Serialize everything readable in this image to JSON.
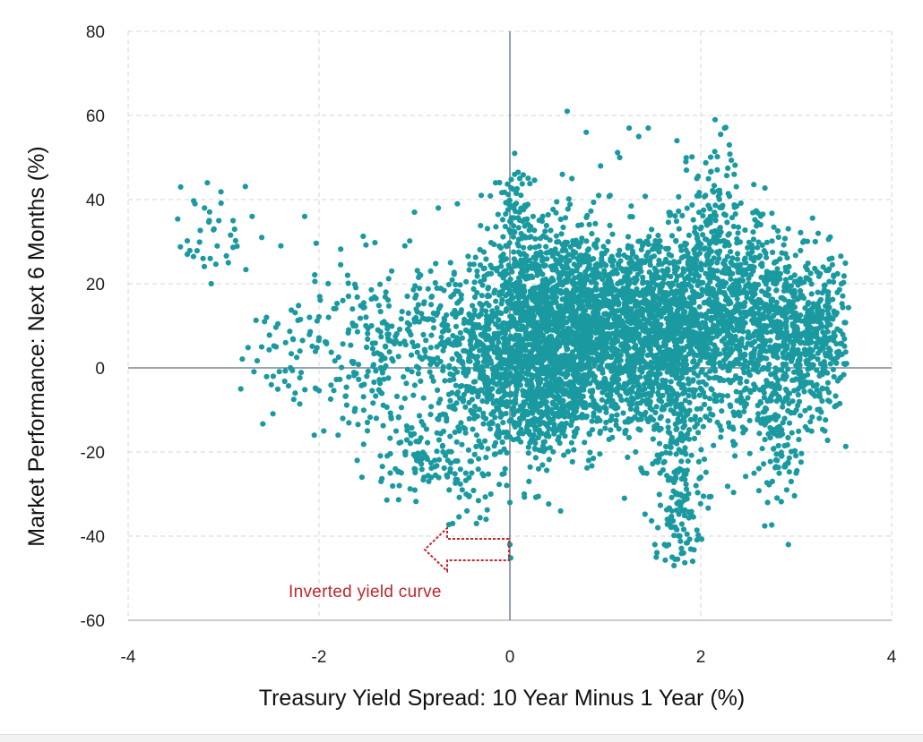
{
  "chart_data": {
    "type": "scatter",
    "xlabel": "Treasury Yield Spread: 10 Year Minus 1 Year (%)",
    "ylabel": "Market Performance: Next 6 Months (%)",
    "xlim": [
      -4,
      4
    ],
    "ylim": [
      -60,
      80
    ],
    "x_ticks": [
      -4,
      -2,
      0,
      2,
      4
    ],
    "y_ticks": [
      -60,
      -40,
      -20,
      0,
      20,
      40,
      60,
      80
    ],
    "x_tick_labels": [
      "-4",
      "-2",
      "0",
      "2",
      "4"
    ],
    "y_tick_labels": [
      "-60",
      "-40",
      "-20",
      "0",
      "20",
      "40",
      "60",
      "80"
    ],
    "grid": "dashed",
    "marker_color": "#1a9aa0",
    "annotation": {
      "text": "Inverted yield curve",
      "color": "#c0262d",
      "arrow": "points left from x = 0 toward negative spread",
      "arrow_y": -44
    },
    "points": [
      [
        -3.45,
        43
      ],
      [
        -3.38,
        27
      ],
      [
        -3.3,
        39
      ],
      [
        -3.2,
        38
      ],
      [
        -3.17,
        44
      ],
      [
        -3.15,
        35
      ],
      [
        -3.14,
        26
      ],
      [
        -3.13,
        20
      ],
      [
        -3.1,
        33
      ],
      [
        -3.05,
        35
      ],
      [
        -2.95,
        25
      ],
      [
        -2.9,
        35
      ],
      [
        -2.82,
        -5
      ],
      [
        -2.7,
        36
      ],
      [
        -2.6,
        31
      ],
      [
        -2.55,
        12
      ],
      [
        -2.5,
        -4
      ],
      [
        -2.48,
        -2
      ],
      [
        -2.45,
        5
      ],
      [
        -2.4,
        29
      ],
      [
        -2.35,
        6
      ],
      [
        -2.3,
        0
      ],
      [
        -2.25,
        -6
      ],
      [
        -2.2,
        4
      ],
      [
        -2.15,
        36
      ],
      [
        -2.1,
        12
      ],
      [
        -2.05,
        -16
      ],
      [
        -1.95,
        -15
      ],
      [
        -1.9,
        12
      ],
      [
        -1.8,
        -16
      ],
      [
        -1.75,
        16
      ],
      [
        -1.7,
        22
      ],
      [
        -1.65,
        14
      ],
      [
        -1.6,
        -22
      ],
      [
        -1.55,
        -26
      ],
      [
        -1.5,
        -2
      ],
      [
        -1.45,
        10
      ],
      [
        -1.4,
        -12
      ],
      [
        -1.35,
        -27
      ],
      [
        -1.3,
        18
      ],
      [
        -1.2,
        -24
      ],
      [
        -1.1,
        29
      ],
      [
        -1.0,
        37
      ],
      [
        -0.95,
        -21
      ],
      [
        -0.9,
        -26
      ],
      [
        -0.85,
        -27
      ],
      [
        -0.8,
        13
      ],
      [
        -0.75,
        38
      ],
      [
        -0.7,
        -11
      ],
      [
        -0.65,
        -22
      ],
      [
        -0.6,
        -37
      ],
      [
        -0.55,
        39
      ],
      [
        -0.5,
        -29
      ],
      [
        -0.45,
        -34
      ],
      [
        -0.4,
        -25
      ],
      [
        -0.35,
        -37
      ],
      [
        -0.3,
        41
      ],
      [
        -0.25,
        -36
      ],
      [
        -0.2,
        -30
      ],
      [
        -0.15,
        44
      ],
      [
        -0.1,
        -20
      ],
      [
        -0.05,
        -24
      ],
      [
        0.0,
        -32
      ],
      [
        0.0,
        -42
      ],
      [
        0.05,
        51
      ],
      [
        0.1,
        37
      ],
      [
        0.15,
        -30
      ],
      [
        0.2,
        -27
      ],
      [
        0.3,
        -24
      ],
      [
        0.45,
        -5
      ],
      [
        0.55,
        46
      ],
      [
        0.6,
        61
      ],
      [
        0.65,
        45
      ],
      [
        0.75,
        34
      ],
      [
        0.8,
        56
      ],
      [
        0.95,
        48
      ],
      [
        1.05,
        41
      ],
      [
        1.15,
        50
      ],
      [
        1.2,
        -31
      ],
      [
        1.25,
        57
      ],
      [
        1.35,
        55
      ],
      [
        1.45,
        57
      ],
      [
        1.55,
        -38
      ],
      [
        1.62,
        -42
      ],
      [
        1.65,
        -36
      ],
      [
        1.7,
        -45
      ],
      [
        1.72,
        -47
      ],
      [
        1.75,
        54
      ],
      [
        1.78,
        -40
      ],
      [
        1.8,
        -32
      ],
      [
        1.82,
        -44
      ],
      [
        1.85,
        47
      ],
      [
        1.9,
        -35
      ],
      [
        1.95,
        -28
      ],
      [
        2.0,
        -26
      ],
      [
        2.05,
        41
      ],
      [
        2.1,
        36
      ],
      [
        2.15,
        59
      ],
      [
        2.2,
        -3
      ],
      [
        2.25,
        57
      ],
      [
        2.3,
        53
      ],
      [
        2.35,
        46
      ],
      [
        2.5,
        20
      ],
      [
        2.6,
        -12
      ],
      [
        2.7,
        -32
      ],
      [
        2.75,
        -27
      ],
      [
        2.8,
        -22
      ],
      [
        2.9,
        -29
      ],
      [
        3.0,
        -25
      ],
      [
        3.1,
        24
      ],
      [
        3.2,
        30
      ],
      [
        3.3,
        -15
      ],
      [
        3.35,
        -8
      ],
      [
        3.4,
        13
      ],
      [
        3.45,
        3
      ],
      [
        3.5,
        1
      ]
    ],
    "clusters": [
      {
        "cx": 0.15,
        "cy": 5,
        "sx": 0.28,
        "sy": 13,
        "n": 700
      },
      {
        "cx": 0.55,
        "cy": 10,
        "sx": 0.35,
        "sy": 12,
        "n": 700
      },
      {
        "cx": 1.0,
        "cy": 12,
        "sx": 0.45,
        "sy": 10,
        "n": 800
      },
      {
        "cx": 1.6,
        "cy": 8,
        "sx": 0.45,
        "sy": 11,
        "n": 800
      },
      {
        "cx": 2.2,
        "cy": 13,
        "sx": 0.4,
        "sy": 12,
        "n": 650
      },
      {
        "cx": 2.8,
        "cy": 7,
        "sx": 0.35,
        "sy": 11,
        "n": 500
      },
      {
        "cx": 3.2,
        "cy": 8,
        "sx": 0.2,
        "sy": 9,
        "n": 260
      },
      {
        "cx": -0.3,
        "cy": 2,
        "sx": 0.3,
        "sy": 12,
        "n": 320
      },
      {
        "cx": -0.9,
        "cy": 8,
        "sx": 0.35,
        "sy": 10,
        "n": 170
      },
      {
        "cx": -1.5,
        "cy": 2,
        "sx": 0.3,
        "sy": 12,
        "n": 120
      },
      {
        "cx": -1.0,
        "cy": -20,
        "sx": 0.2,
        "sy": 6,
        "n": 70
      },
      {
        "cx": -0.5,
        "cy": -22,
        "sx": 0.15,
        "sy": 8,
        "n": 55
      },
      {
        "cx": 1.75,
        "cy": -35,
        "sx": 0.12,
        "sy": 6,
        "n": 90
      },
      {
        "cx": 1.7,
        "cy": -17,
        "sx": 0.18,
        "sy": 6,
        "n": 80
      },
      {
        "cx": 2.15,
        "cy": 37,
        "sx": 0.15,
        "sy": 9,
        "n": 90
      },
      {
        "cx": 0.05,
        "cy": 36,
        "sx": 0.12,
        "sy": 7,
        "n": 70
      },
      {
        "cx": 2.8,
        "cy": -18,
        "sx": 0.12,
        "sy": 7,
        "n": 80
      },
      {
        "cx": 0.5,
        "cy": -10,
        "sx": 0.3,
        "sy": 6,
        "n": 140
      },
      {
        "cx": 1.2,
        "cy": -6,
        "sx": 0.4,
        "sy": 5,
        "n": 160
      },
      {
        "cx": -2.4,
        "cy": 3,
        "sx": 0.25,
        "sy": 8,
        "n": 40
      },
      {
        "cx": -3.1,
        "cy": 33,
        "sx": 0.18,
        "sy": 6,
        "n": 25
      }
    ]
  }
}
